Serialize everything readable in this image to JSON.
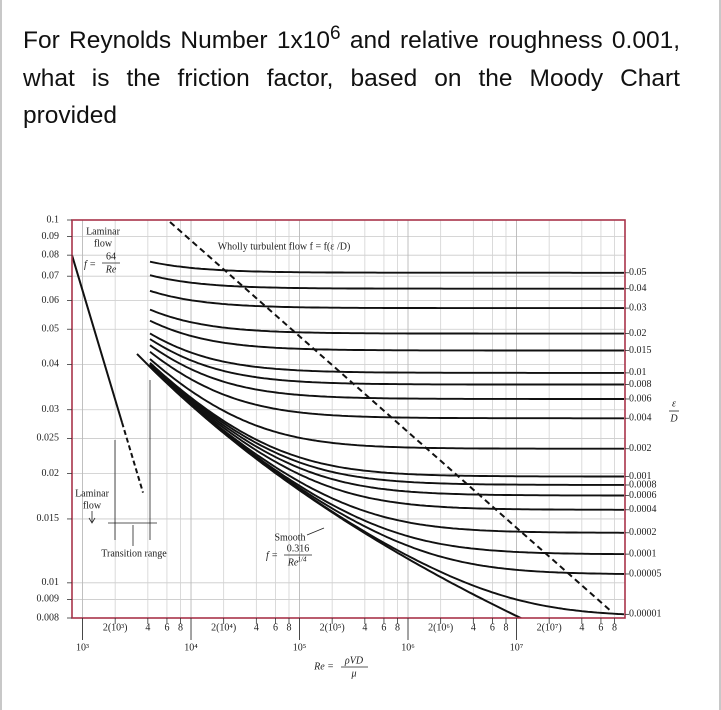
{
  "question": {
    "before": "For Reynolds Number 1x10",
    "exponent": "6",
    "after": " and relative roughness 0.001, what is the friction factor, based on the Moody Chart provided"
  },
  "chart_data": {
    "type": "moody",
    "log_scale": true,
    "grid": true,
    "xlim": [
      800,
      100000000
    ],
    "ylim": [
      0.008,
      0.1
    ],
    "yticks": [
      0.008,
      0.009,
      0.01,
      0.015,
      0.02,
      0.025,
      0.03,
      0.04,
      0.05,
      0.06,
      0.07,
      0.08,
      0.09,
      0.1
    ],
    "xticks": [
      {
        "value": 1000,
        "label": "10³"
      },
      {
        "value": 10000,
        "label": "10⁴"
      },
      {
        "value": 100000,
        "label": "10⁵"
      },
      {
        "value": 1000000,
        "label": "10⁶"
      },
      {
        "value": 10000000,
        "label": "10⁷"
      }
    ],
    "xticks_minor": [
      {
        "value": 2000,
        "label": "2(10³)"
      },
      {
        "value": 4000,
        "label": "4"
      },
      {
        "value": 6000,
        "label": "6"
      },
      {
        "value": 8000,
        "label": "8"
      },
      {
        "value": 20000,
        "label": "2(10⁴)"
      },
      {
        "value": 40000,
        "label": "4"
      },
      {
        "value": 60000,
        "label": "6"
      },
      {
        "value": 80000,
        "label": "8"
      },
      {
        "value": 200000,
        "label": "2(10⁵)"
      },
      {
        "value": 400000,
        "label": "4"
      },
      {
        "value": 600000,
        "label": "6"
      },
      {
        "value": 800000,
        "label": "8"
      },
      {
        "value": 2000000,
        "label": "2(10⁶)"
      },
      {
        "value": 4000000,
        "label": "4"
      },
      {
        "value": 6000000,
        "label": "6"
      },
      {
        "value": 8000000,
        "label": "8"
      },
      {
        "value": 20000000,
        "label": "2(10⁷)"
      },
      {
        "value": 40000000,
        "label": "4"
      },
      {
        "value": 60000000,
        "label": "6"
      },
      {
        "value": 80000000,
        "label": "8"
      }
    ],
    "roughness": [
      0.05,
      0.04,
      0.03,
      0.02,
      0.015,
      0.01,
      0.008,
      0.006,
      0.004,
      0.002,
      0.001,
      0.0008,
      0.0006,
      0.0004,
      0.0002,
      0.0001,
      5e-05,
      1e-05
    ],
    "roughness_label": {
      "numerator": "ε",
      "denominator": "D"
    },
    "x_label": {
      "lhs": "Re =",
      "numerator": "ρVD",
      "denominator": "μ"
    },
    "annotations": {
      "laminar_top": [
        "Laminar",
        "flow"
      ],
      "laminar_formula": {
        "lhs": "f =",
        "numerator": "64",
        "denominator": "Re"
      },
      "wholly_turbulent": "Wholly turbulent flow f = f(ε /D)",
      "laminar_bottom": [
        "Laminar",
        "flow"
      ],
      "transition": "Transition range",
      "smooth": "Smooth",
      "smooth_formula": {
        "lhs": "f =",
        "numerator": "0.316",
        "denominator": "Re",
        "exponent": "1/4"
      }
    }
  }
}
